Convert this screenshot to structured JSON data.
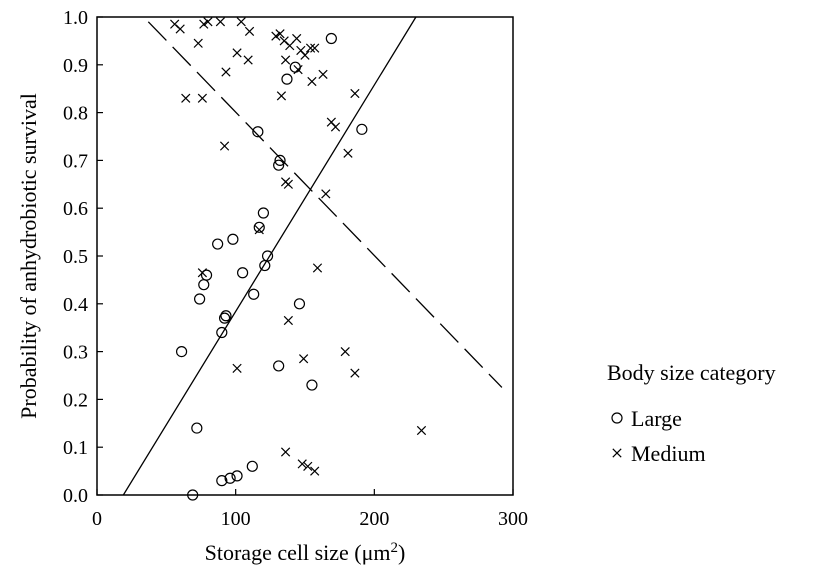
{
  "chart_data": {
    "type": "scatter",
    "xlabel_main": "Storage cell size (μm",
    "xlabel_sup": "2",
    "xlabel_close": ")",
    "ylabel": "Probability of anhydrobiotic survival",
    "xlim": [
      0,
      300
    ],
    "ylim": [
      0,
      1.0
    ],
    "x_ticks": [
      "0",
      "100",
      "200",
      "300"
    ],
    "y_ticks": [
      "0.0",
      "0.1",
      "0.2",
      "0.3",
      "0.4",
      "0.5",
      "0.6",
      "0.7",
      "0.8",
      "0.9",
      "1.0"
    ],
    "grid": false,
    "legend": {
      "title": "Body size category",
      "placement": "right",
      "entries": [
        {
          "label": "Large",
          "marker": "circle"
        },
        {
          "label": "Medium",
          "marker": "x"
        }
      ]
    },
    "series": [
      {
        "name": "Large",
        "marker": "circle",
        "points": [
          [
            69,
            0.0
          ],
          [
            90,
            0.03
          ],
          [
            96,
            0.035
          ],
          [
            101,
            0.04
          ],
          [
            112,
            0.06
          ],
          [
            72,
            0.14
          ],
          [
            61,
            0.3
          ],
          [
            155,
            0.23
          ],
          [
            131,
            0.27
          ],
          [
            90,
            0.34
          ],
          [
            92,
            0.37
          ],
          [
            93,
            0.375
          ],
          [
            146,
            0.4
          ],
          [
            74,
            0.41
          ],
          [
            113,
            0.42
          ],
          [
            77,
            0.44
          ],
          [
            79,
            0.46
          ],
          [
            105,
            0.465
          ],
          [
            121,
            0.48
          ],
          [
            123,
            0.5
          ],
          [
            87,
            0.525
          ],
          [
            98,
            0.535
          ],
          [
            117,
            0.56
          ],
          [
            120,
            0.59
          ],
          [
            131,
            0.69
          ],
          [
            132,
            0.7
          ],
          [
            116,
            0.76
          ],
          [
            191,
            0.765
          ],
          [
            137,
            0.87
          ],
          [
            143,
            0.895
          ],
          [
            169,
            0.955
          ]
        ]
      },
      {
        "name": "Medium",
        "marker": "x",
        "points": [
          [
            56,
            0.985
          ],
          [
            60,
            0.975
          ],
          [
            77,
            0.985
          ],
          [
            80,
            0.99
          ],
          [
            89,
            0.99
          ],
          [
            104,
            0.99
          ],
          [
            110,
            0.97
          ],
          [
            73,
            0.945
          ],
          [
            101,
            0.925
          ],
          [
            109,
            0.91
          ],
          [
            129,
            0.96
          ],
          [
            132,
            0.965
          ],
          [
            135,
            0.95
          ],
          [
            139,
            0.94
          ],
          [
            144,
            0.955
          ],
          [
            147,
            0.93
          ],
          [
            150,
            0.92
          ],
          [
            154,
            0.935
          ],
          [
            157,
            0.935
          ],
          [
            136,
            0.91
          ],
          [
            145,
            0.89
          ],
          [
            93,
            0.885
          ],
          [
            155,
            0.865
          ],
          [
            163,
            0.88
          ],
          [
            64,
            0.83
          ],
          [
            76,
            0.83
          ],
          [
            133,
            0.835
          ],
          [
            186,
            0.84
          ],
          [
            169,
            0.78
          ],
          [
            172,
            0.77
          ],
          [
            92,
            0.73
          ],
          [
            181,
            0.715
          ],
          [
            136,
            0.655
          ],
          [
            138,
            0.65
          ],
          [
            165,
            0.63
          ],
          [
            117,
            0.555
          ],
          [
            76,
            0.465
          ],
          [
            159,
            0.475
          ],
          [
            138,
            0.365
          ],
          [
            179,
            0.3
          ],
          [
            149,
            0.285
          ],
          [
            101,
            0.265
          ],
          [
            186,
            0.255
          ],
          [
            234,
            0.135
          ],
          [
            136,
            0.09
          ],
          [
            148,
            0.065
          ],
          [
            152,
            0.06
          ],
          [
            157,
            0.05
          ]
        ]
      }
    ],
    "fit_lines": [
      {
        "for": "Large",
        "style": "solid",
        "points": [
          [
            19,
            0.0
          ],
          [
            230,
            1.0
          ]
        ]
      },
      {
        "for": "Medium",
        "style": "dashed",
        "points": [
          [
            37,
            0.99
          ],
          [
            292,
            0.225
          ]
        ]
      }
    ]
  }
}
